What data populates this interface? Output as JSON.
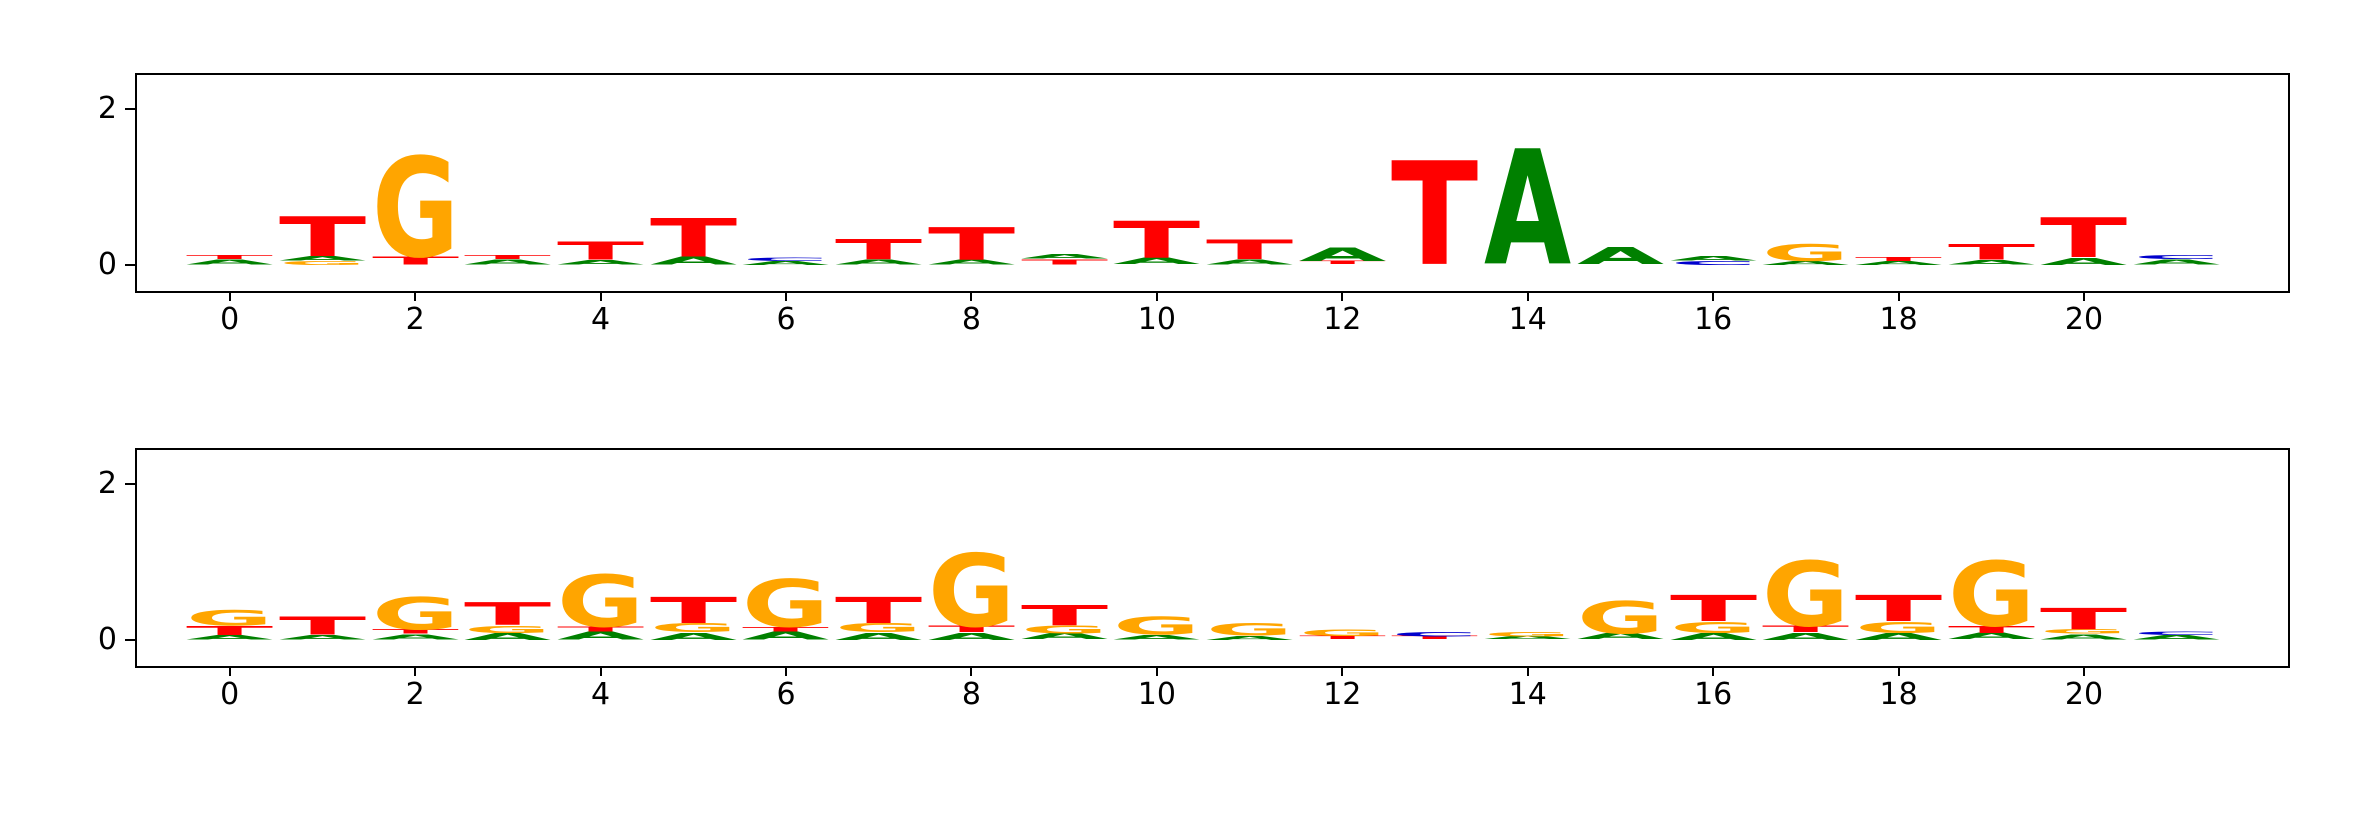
{
  "figure": {
    "background": "#ffffff",
    "axes_color": "#000000"
  },
  "letter_colors": {
    "A": "#008000",
    "C": "#0000cc",
    "G": "#ffa500",
    "T": "#ff0000"
  },
  "chart_data": [
    {
      "type": "sequence_logo",
      "name": "sequence-logo-top",
      "xlabel": "",
      "ylabel": "",
      "xticks": [
        0,
        2,
        4,
        6,
        8,
        10,
        12,
        14,
        16,
        18,
        20
      ],
      "yticks": [
        0,
        2
      ],
      "xlim": [
        -1.0,
        22.2
      ],
      "ylim": [
        -0.34,
        2.44
      ],
      "stacks": [
        {
          "pos": 0,
          "letters": [
            {
              "char": "A",
              "h": 0.07
            },
            {
              "char": "T",
              "h": 0.05
            }
          ]
        },
        {
          "pos": 1,
          "letters": [
            {
              "char": "G",
              "h": 0.05
            },
            {
              "char": "A",
              "h": 0.06
            },
            {
              "char": "T",
              "h": 0.52
            }
          ]
        },
        {
          "pos": 2,
          "letters": [
            {
              "char": "T",
              "h": 0.1
            },
            {
              "char": "G",
              "h": 1.3
            }
          ]
        },
        {
          "pos": 3,
          "letters": [
            {
              "char": "A",
              "h": 0.07
            },
            {
              "char": "T",
              "h": 0.05
            }
          ]
        },
        {
          "pos": 4,
          "letters": [
            {
              "char": "A",
              "h": 0.06
            },
            {
              "char": "T",
              "h": 0.24
            }
          ]
        },
        {
          "pos": 5,
          "letters": [
            {
              "char": "A",
              "h": 0.1
            },
            {
              "char": "T",
              "h": 0.5
            }
          ]
        },
        {
          "pos": 6,
          "letters": [
            {
              "char": "A",
              "h": 0.05
            },
            {
              "char": "C",
              "h": 0.04
            }
          ]
        },
        {
          "pos": 7,
          "letters": [
            {
              "char": "A",
              "h": 0.07
            },
            {
              "char": "T",
              "h": 0.26
            }
          ]
        },
        {
          "pos": 8,
          "letters": [
            {
              "char": "A",
              "h": 0.07
            },
            {
              "char": "T",
              "h": 0.42
            }
          ]
        },
        {
          "pos": 9,
          "letters": [
            {
              "char": "T",
              "h": 0.07
            },
            {
              "char": "A",
              "h": 0.06
            }
          ]
        },
        {
          "pos": 10,
          "letters": [
            {
              "char": "A",
              "h": 0.08
            },
            {
              "char": "T",
              "h": 0.48
            }
          ]
        },
        {
          "pos": 11,
          "letters": [
            {
              "char": "A",
              "h": 0.07
            },
            {
              "char": "T",
              "h": 0.25
            }
          ]
        },
        {
          "pos": 12,
          "letters": [
            {
              "char": "T",
              "h": 0.04
            },
            {
              "char": "A",
              "h": 0.18
            }
          ]
        },
        {
          "pos": 13,
          "letters": [
            {
              "char": "T",
              "h": 1.35
            }
          ]
        },
        {
          "pos": 14,
          "letters": [
            {
              "char": "A",
              "h": 1.5
            }
          ]
        },
        {
          "pos": 15,
          "letters": [
            {
              "char": "A",
              "h": 0.22
            }
          ]
        },
        {
          "pos": 16,
          "letters": [
            {
              "char": "C",
              "h": 0.05
            },
            {
              "char": "A",
              "h": 0.06
            }
          ]
        },
        {
          "pos": 17,
          "letters": [
            {
              "char": "A",
              "h": 0.05
            },
            {
              "char": "G",
              "h": 0.22
            }
          ]
        },
        {
          "pos": 18,
          "letters": [
            {
              "char": "A",
              "h": 0.05
            },
            {
              "char": "T",
              "h": 0.05
            }
          ]
        },
        {
          "pos": 19,
          "letters": [
            {
              "char": "A",
              "h": 0.06
            },
            {
              "char": "T",
              "h": 0.2
            }
          ]
        },
        {
          "pos": 20,
          "letters": [
            {
              "char": "A",
              "h": 0.09
            },
            {
              "char": "T",
              "h": 0.52
            }
          ]
        },
        {
          "pos": 21,
          "letters": [
            {
              "char": "A",
              "h": 0.07
            },
            {
              "char": "C",
              "h": 0.05
            }
          ]
        }
      ]
    },
    {
      "type": "sequence_logo",
      "name": "sequence-logo-bottom",
      "xlabel": "",
      "ylabel": "",
      "xticks": [
        0,
        2,
        4,
        6,
        8,
        10,
        12,
        14,
        16,
        18,
        20
      ],
      "yticks": [
        0,
        2
      ],
      "xlim": [
        -1.0,
        22.2
      ],
      "ylim": [
        -0.34,
        2.44
      ],
      "stacks": [
        {
          "pos": 0,
          "letters": [
            {
              "char": "A",
              "h": 0.06
            },
            {
              "char": "T",
              "h": 0.12
            },
            {
              "char": "G",
              "h": 0.2
            }
          ]
        },
        {
          "pos": 1,
          "letters": [
            {
              "char": "A",
              "h": 0.06
            },
            {
              "char": "T",
              "h": 0.24
            }
          ]
        },
        {
          "pos": 2,
          "letters": [
            {
              "char": "A",
              "h": 0.07
            },
            {
              "char": "T",
              "h": 0.06
            },
            {
              "char": "G",
              "h": 0.42
            }
          ]
        },
        {
          "pos": 3,
          "letters": [
            {
              "char": "A",
              "h": 0.09
            },
            {
              "char": "G",
              "h": 0.09
            },
            {
              "char": "T",
              "h": 0.3
            }
          ]
        },
        {
          "pos": 4,
          "letters": [
            {
              "char": "A",
              "h": 0.1
            },
            {
              "char": "T",
              "h": 0.07
            },
            {
              "char": "G",
              "h": 0.68
            }
          ]
        },
        {
          "pos": 5,
          "letters": [
            {
              "char": "A",
              "h": 0.09
            },
            {
              "char": "G",
              "h": 0.12
            },
            {
              "char": "T",
              "h": 0.34
            }
          ]
        },
        {
          "pos": 6,
          "letters": [
            {
              "char": "A",
              "h": 0.1
            },
            {
              "char": "T",
              "h": 0.06
            },
            {
              "char": "G",
              "h": 0.62
            }
          ]
        },
        {
          "pos": 7,
          "letters": [
            {
              "char": "A",
              "h": 0.09
            },
            {
              "char": "G",
              "h": 0.12
            },
            {
              "char": "T",
              "h": 0.34
            }
          ]
        },
        {
          "pos": 8,
          "letters": [
            {
              "char": "A",
              "h": 0.09
            },
            {
              "char": "T",
              "h": 0.08
            },
            {
              "char": "G",
              "h": 0.95
            }
          ]
        },
        {
          "pos": 9,
          "letters": [
            {
              "char": "A",
              "h": 0.08
            },
            {
              "char": "G",
              "h": 0.1
            },
            {
              "char": "T",
              "h": 0.26
            }
          ]
        },
        {
          "pos": 10,
          "letters": [
            {
              "char": "A",
              "h": 0.06
            },
            {
              "char": "G",
              "h": 0.24
            }
          ]
        },
        {
          "pos": 11,
          "letters": [
            {
              "char": "A",
              "h": 0.05
            },
            {
              "char": "G",
              "h": 0.16
            }
          ]
        },
        {
          "pos": 12,
          "letters": [
            {
              "char": "T",
              "h": 0.04
            },
            {
              "char": "G",
              "h": 0.08
            }
          ]
        },
        {
          "pos": 13,
          "letters": [
            {
              "char": "T",
              "h": 0.04
            },
            {
              "char": "C",
              "h": 0.06
            }
          ]
        },
        {
          "pos": 14,
          "letters": [
            {
              "char": "A",
              "h": 0.04
            },
            {
              "char": "G",
              "h": 0.06
            }
          ]
        },
        {
          "pos": 15,
          "letters": [
            {
              "char": "A",
              "h": 0.08
            },
            {
              "char": "G",
              "h": 0.42
            }
          ]
        },
        {
          "pos": 16,
          "letters": [
            {
              "char": "A",
              "h": 0.09
            },
            {
              "char": "G",
              "h": 0.14
            },
            {
              "char": "T",
              "h": 0.34
            }
          ]
        },
        {
          "pos": 17,
          "letters": [
            {
              "char": "A",
              "h": 0.09
            },
            {
              "char": "T",
              "h": 0.08
            },
            {
              "char": "G",
              "h": 0.85
            }
          ]
        },
        {
          "pos": 18,
          "letters": [
            {
              "char": "A",
              "h": 0.09
            },
            {
              "char": "G",
              "h": 0.14
            },
            {
              "char": "T",
              "h": 0.34
            }
          ]
        },
        {
          "pos": 19,
          "letters": [
            {
              "char": "A",
              "h": 0.08
            },
            {
              "char": "T",
              "h": 0.09
            },
            {
              "char": "G",
              "h": 0.85
            }
          ]
        },
        {
          "pos": 20,
          "letters": [
            {
              "char": "A",
              "h": 0.07
            },
            {
              "char": "G",
              "h": 0.06
            },
            {
              "char": "T",
              "h": 0.28
            }
          ]
        },
        {
          "pos": 21,
          "letters": [
            {
              "char": "A",
              "h": 0.06
            },
            {
              "char": "C",
              "h": 0.04
            }
          ]
        }
      ]
    }
  ]
}
